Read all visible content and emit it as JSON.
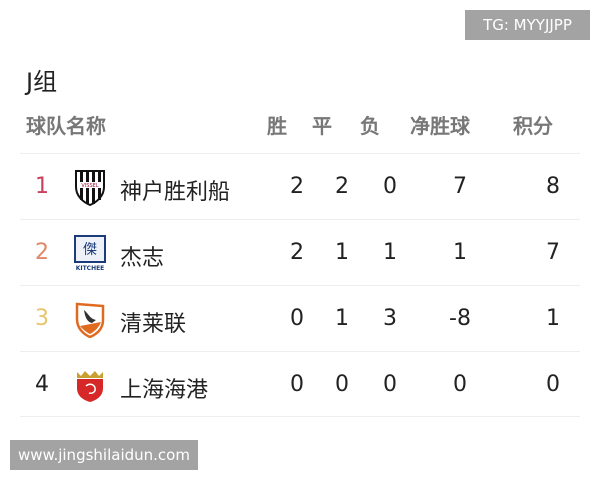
{
  "watermark_top": "TG: MYYJJPP",
  "watermark_bottom": "www.jingshilaidun.com",
  "group_title": "J组",
  "headers": {
    "team": "球队名称",
    "win": "胜",
    "draw": "平",
    "loss": "负",
    "gd": "净胜球",
    "pts": "积分"
  },
  "rows": [
    {
      "rank": "1",
      "rank_color": "#c9405e",
      "team": "神户胜利船",
      "logo": "vissel-kobe-logo",
      "logo_text": "VISSEL",
      "win": "2",
      "draw": "2",
      "loss": "0",
      "gd": "7",
      "pts": "8"
    },
    {
      "rank": "2",
      "rank_color": "#e08866",
      "team": "杰志",
      "logo": "kitchee-logo",
      "logo_text": "KITCHEE",
      "win": "2",
      "draw": "1",
      "loss": "1",
      "gd": "1",
      "pts": "7"
    },
    {
      "rank": "3",
      "rank_color": "#e8c46a",
      "team": "清莱联",
      "logo": "chiangrai-united-logo",
      "win": "0",
      "draw": "1",
      "loss": "3",
      "gd": "-8",
      "pts": "1"
    },
    {
      "rank": "4",
      "rank_color": "#222222",
      "team": "上海海港",
      "logo": "shanghai-port-logo",
      "win": "0",
      "draw": "0",
      "loss": "0",
      "gd": "0",
      "pts": "0"
    }
  ]
}
